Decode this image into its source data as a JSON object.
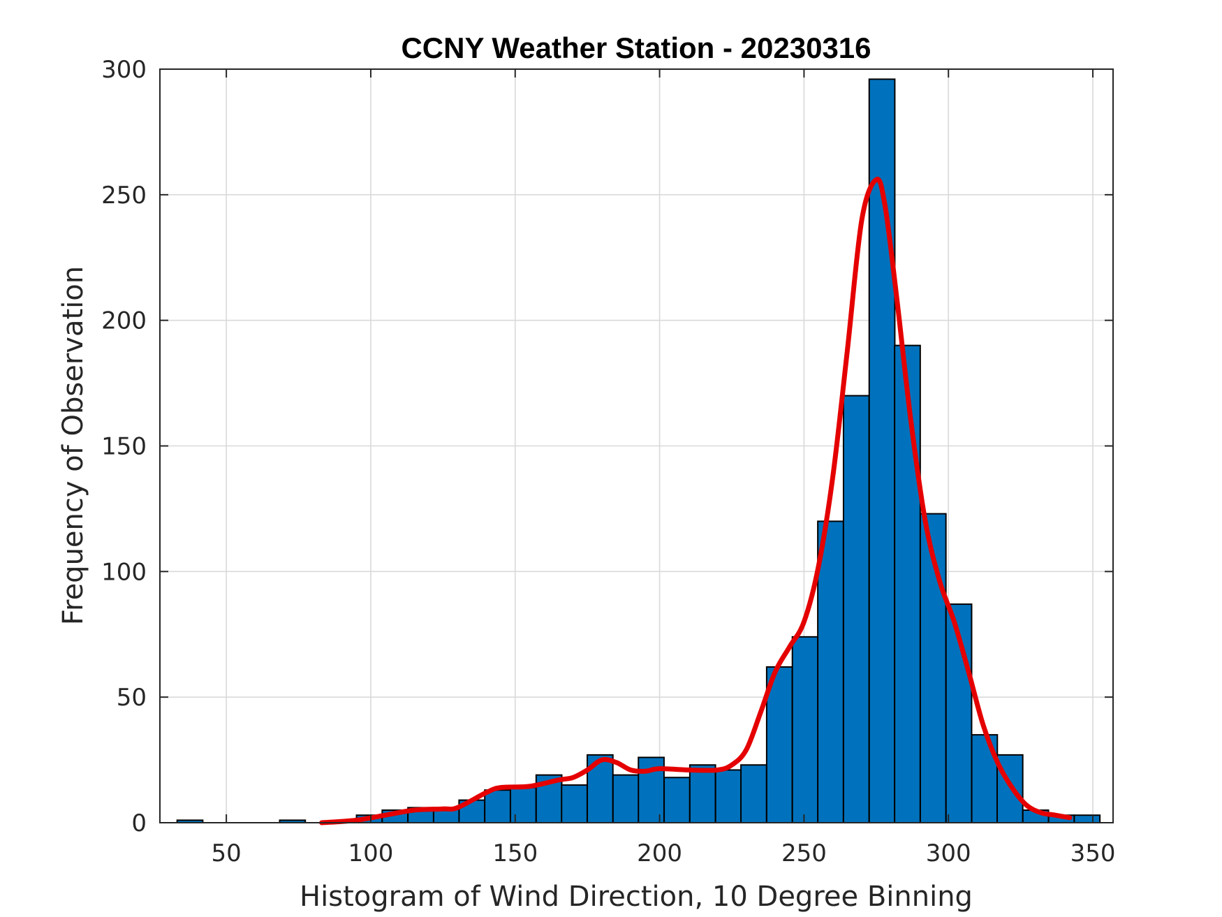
{
  "chart_data": {
    "type": "bar",
    "title": "CCNY Weather Station - 20230316",
    "xlabel": "Histogram of Wind Direction, 10 Degree Binning",
    "ylabel": "Frequency of Observation",
    "xlim": [
      27,
      357
    ],
    "ylim": [
      0,
      300
    ],
    "xticks": [
      50,
      100,
      150,
      200,
      250,
      300,
      350
    ],
    "yticks": [
      0,
      50,
      100,
      150,
      200,
      250,
      300
    ],
    "xtick_labels": [
      "50",
      "100",
      "150",
      "200",
      "250",
      "300",
      "350"
    ],
    "ytick_labels": [
      "0",
      "50",
      "100",
      "150",
      "200",
      "250",
      "300"
    ],
    "grid": true,
    "bin_width": 8.87,
    "bars": [
      {
        "x": 37.4,
        "value": 1
      },
      {
        "x": 72.9,
        "value": 1
      },
      {
        "x": 99.5,
        "value": 3
      },
      {
        "x": 108.4,
        "value": 5
      },
      {
        "x": 117.3,
        "value": 6
      },
      {
        "x": 126.2,
        "value": 6
      },
      {
        "x": 135.0,
        "value": 9
      },
      {
        "x": 143.9,
        "value": 13
      },
      {
        "x": 152.8,
        "value": 14
      },
      {
        "x": 161.7,
        "value": 19
      },
      {
        "x": 170.5,
        "value": 15
      },
      {
        "x": 179.4,
        "value": 27
      },
      {
        "x": 188.3,
        "value": 19
      },
      {
        "x": 197.1,
        "value": 26
      },
      {
        "x": 206.0,
        "value": 18
      },
      {
        "x": 214.9,
        "value": 23
      },
      {
        "x": 223.8,
        "value": 21
      },
      {
        "x": 232.6,
        "value": 23
      },
      {
        "x": 241.5,
        "value": 62
      },
      {
        "x": 250.4,
        "value": 74
      },
      {
        "x": 259.2,
        "value": 120
      },
      {
        "x": 268.1,
        "value": 170
      },
      {
        "x": 277.0,
        "value": 296
      },
      {
        "x": 285.8,
        "value": 190
      },
      {
        "x": 294.7,
        "value": 123
      },
      {
        "x": 303.6,
        "value": 87
      },
      {
        "x": 312.5,
        "value": 35
      },
      {
        "x": 321.3,
        "value": 27
      },
      {
        "x": 330.2,
        "value": 5
      },
      {
        "x": 339.1,
        "value": 3
      },
      {
        "x": 348.0,
        "value": 3
      }
    ],
    "series": [
      {
        "type": "line",
        "points": [
          [
            83,
            0
          ],
          [
            95,
            1
          ],
          [
            105,
            3
          ],
          [
            115,
            5
          ],
          [
            125,
            5.5
          ],
          [
            130,
            6
          ],
          [
            140,
            12
          ],
          [
            145,
            14
          ],
          [
            155,
            14.5
          ],
          [
            165,
            17
          ],
          [
            170,
            18
          ],
          [
            175,
            21
          ],
          [
            180,
            25
          ],
          [
            185,
            24
          ],
          [
            190,
            21
          ],
          [
            195,
            20.5
          ],
          [
            200,
            21.5
          ],
          [
            210,
            21
          ],
          [
            220,
            21
          ],
          [
            225,
            23
          ],
          [
            230,
            29
          ],
          [
            235,
            44
          ],
          [
            240,
            60
          ],
          [
            245,
            70
          ],
          [
            250,
            80
          ],
          [
            255,
            102
          ],
          [
            260,
            138
          ],
          [
            265,
            188
          ],
          [
            270,
            240
          ],
          [
            275,
            256
          ],
          [
            278,
            246
          ],
          [
            282,
            210
          ],
          [
            287,
            160
          ],
          [
            292,
            120
          ],
          [
            297,
            96
          ],
          [
            302,
            80
          ],
          [
            307,
            60
          ],
          [
            312,
            39
          ],
          [
            317,
            24
          ],
          [
            322,
            14
          ],
          [
            327,
            7
          ],
          [
            332,
            4
          ],
          [
            337,
            3
          ],
          [
            342,
            2
          ]
        ]
      }
    ],
    "colors": {
      "bar_fill": "#0072BD",
      "bar_edge": "#000000",
      "line": "#E50000",
      "grid": "#D9D9D9",
      "axes": "#262626"
    }
  }
}
